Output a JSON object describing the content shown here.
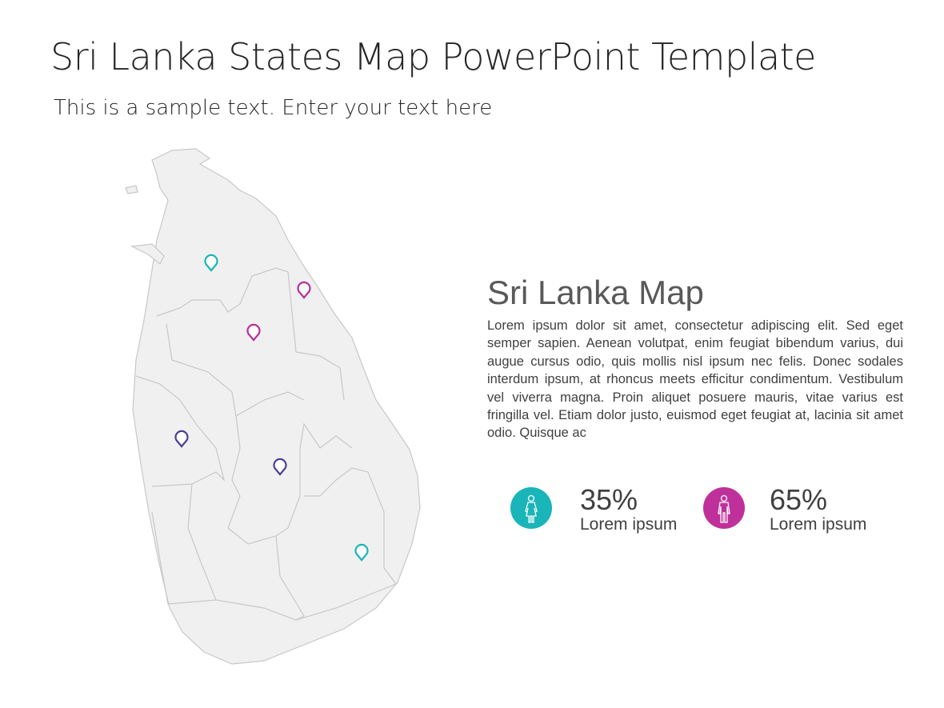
{
  "slide": {
    "title": "Sri Lanka States Map PowerPoint Template",
    "subtitle": "This is a sample text. Enter your text here"
  },
  "map": {
    "fill": "#f0f0f1",
    "border": "#c8c8cc",
    "pins": [
      {
        "color": "#1ab5b8"
      },
      {
        "color": "#b8309a"
      },
      {
        "color": "#b8309a"
      },
      {
        "color": "#4b3f8e"
      },
      {
        "color": "#4b3f8e"
      },
      {
        "color": "#1ab5b8"
      }
    ]
  },
  "info": {
    "heading": "Sri Lanka Map",
    "body": "Lorem ipsum dolor sit amet, consectetur adipiscing elit. Sed eget semper sapien. Aenean volutpat, enim feugiat bibendum varius, dui augue cursus odio, quis mollis nisl ipsum nec felis. Donec sodales interdum ipsum, at rhoncus meets efficitur condimentum. Vestibulum vel viverra magna. Proin aliquet posuere mauris, vitae varius est fringilla vel. Etiam dolor justo, euismod eget feugiat at, lacinia sit amet odio. Quisque ac"
  },
  "stats": [
    {
      "icon": "female-icon",
      "color": "#1ab5b8",
      "value": "35%",
      "label": "Lorem ipsum"
    },
    {
      "icon": "male-icon",
      "color": "#c0309a",
      "value": "65%",
      "label": "Lorem ipsum"
    }
  ]
}
